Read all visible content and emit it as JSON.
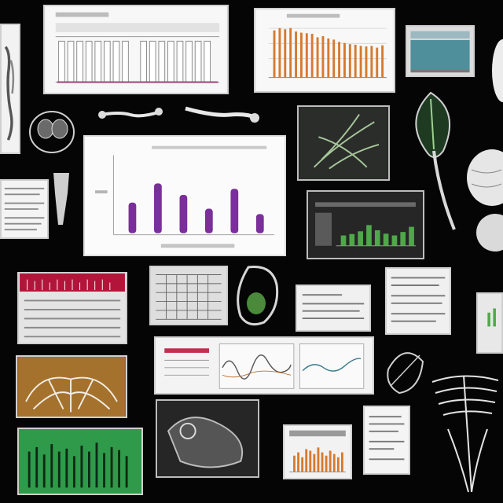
{
  "colors": {
    "background": "#050505",
    "purple_bars": "#7a2f9a",
    "orange_bars": "#d77a2e",
    "green_bars": "#4fa84a",
    "panel_bg": "#f4f4f4"
  },
  "center_chart": {
    "chart_data": {
      "type": "bar",
      "bar_count": 6,
      "values_fraction_of_plot_height": [
        0.4,
        0.65,
        0.5,
        0.32,
        0.58,
        0.25
      ],
      "title": "",
      "xlabel": "",
      "ylabel": "",
      "grid": false
    }
  },
  "top_right_chart": {
    "chart_data": {
      "type": "bar",
      "bar_count": 21,
      "values_fraction_of_plot_height": [
        0.82,
        0.86,
        0.84,
        0.86,
        0.8,
        0.78,
        0.77,
        0.76,
        0.7,
        0.72,
        0.68,
        0.66,
        0.62,
        0.6,
        0.58,
        0.57,
        0.55,
        0.54,
        0.55,
        0.52,
        0.56
      ],
      "title": "",
      "grid": true
    }
  },
  "green_chart": {
    "chart_data": {
      "type": "bar",
      "bar_count": 9,
      "values_fraction_of_plot_height": [
        0.3,
        0.34,
        0.42,
        0.6,
        0.45,
        0.35,
        0.3,
        0.4,
        0.55
      ],
      "title": "",
      "grid": true
    }
  },
  "bottom_orange_chart": {
    "chart_data": {
      "type": "bar",
      "bar_count": 13,
      "values_fraction_of_plot_height": [
        0.5,
        0.6,
        0.45,
        0.7,
        0.65,
        0.55,
        0.75,
        0.6,
        0.5,
        0.65,
        0.55,
        0.45,
        0.6
      ],
      "title": "",
      "grid": false
    }
  }
}
